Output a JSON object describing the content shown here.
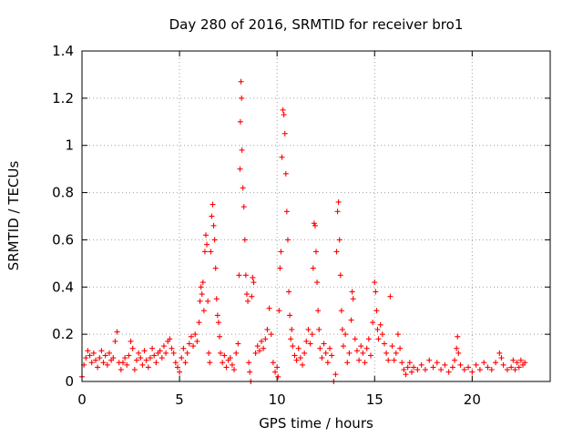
{
  "chart_data": {
    "type": "scatter",
    "title": "Day 280 of 2016, SRMTID for receiver bro1",
    "xlabel": "GPS time / hours",
    "ylabel": "SRMTID / TECUs",
    "xlim": [
      0,
      24
    ],
    "ylim": [
      0,
      1.4
    ],
    "xticks": [
      0,
      5,
      10,
      15,
      20
    ],
    "xtick_labels": [
      "0",
      "5",
      "10",
      "15",
      "20"
    ],
    "yticks": [
      0,
      0.2,
      0.4,
      0.6,
      0.8,
      1.0,
      1.2,
      1.4
    ],
    "ytick_labels": [
      "0",
      "0.2",
      "0.4",
      "0.6",
      "0.8",
      "1",
      "1.2",
      "1.4"
    ],
    "grid": true,
    "marker": "+",
    "color": "#ff0000",
    "series": [
      {
        "name": "bro1",
        "points": [
          [
            0.0,
            0.02
          ],
          [
            0.1,
            0.07
          ],
          [
            0.2,
            0.1
          ],
          [
            0.3,
            0.13
          ],
          [
            0.4,
            0.11
          ],
          [
            0.5,
            0.08
          ],
          [
            0.6,
            0.12
          ],
          [
            0.7,
            0.09
          ],
          [
            0.8,
            0.06
          ],
          [
            0.9,
            0.1
          ],
          [
            1.0,
            0.13
          ],
          [
            1.1,
            0.08
          ],
          [
            1.2,
            0.11
          ],
          [
            1.3,
            0.07
          ],
          [
            1.4,
            0.12
          ],
          [
            1.5,
            0.09
          ],
          [
            1.6,
            0.1
          ],
          [
            1.7,
            0.17
          ],
          [
            1.8,
            0.21
          ],
          [
            1.9,
            0.08
          ],
          [
            2.0,
            0.05
          ],
          [
            2.1,
            0.08
          ],
          [
            2.2,
            0.1
          ],
          [
            2.3,
            0.07
          ],
          [
            2.4,
            0.11
          ],
          [
            2.5,
            0.17
          ],
          [
            2.6,
            0.14
          ],
          [
            2.7,
            0.05
          ],
          [
            2.8,
            0.09
          ],
          [
            2.9,
            0.12
          ],
          [
            3.0,
            0.1
          ],
          [
            3.1,
            0.07
          ],
          [
            3.2,
            0.13
          ],
          [
            3.3,
            0.09
          ],
          [
            3.4,
            0.06
          ],
          [
            3.5,
            0.1
          ],
          [
            3.6,
            0.14
          ],
          [
            3.7,
            0.11
          ],
          [
            3.8,
            0.08
          ],
          [
            3.9,
            0.12
          ],
          [
            4.0,
            0.13
          ],
          [
            4.1,
            0.1
          ],
          [
            4.2,
            0.15
          ],
          [
            4.3,
            0.12
          ],
          [
            4.4,
            0.17
          ],
          [
            4.5,
            0.18
          ],
          [
            4.6,
            0.14
          ],
          [
            4.7,
            0.12
          ],
          [
            4.8,
            0.08
          ],
          [
            4.9,
            0.06
          ],
          [
            5.0,
            0.04
          ],
          [
            5.1,
            0.1
          ],
          [
            5.2,
            0.14
          ],
          [
            5.3,
            0.08
          ],
          [
            5.4,
            0.12
          ],
          [
            5.5,
            0.16
          ],
          [
            5.6,
            0.19
          ],
          [
            5.7,
            0.15
          ],
          [
            5.8,
            0.2
          ],
          [
            5.9,
            0.17
          ],
          [
            6.0,
            0.25
          ],
          [
            6.05,
            0.34
          ],
          [
            6.1,
            0.4
          ],
          [
            6.15,
            0.37
          ],
          [
            6.2,
            0.42
          ],
          [
            6.25,
            0.3
          ],
          [
            6.3,
            0.55
          ],
          [
            6.35,
            0.62
          ],
          [
            6.4,
            0.58
          ],
          [
            6.45,
            0.34
          ],
          [
            6.5,
            0.12
          ],
          [
            6.55,
            0.08
          ],
          [
            6.6,
            0.55
          ],
          [
            6.65,
            0.7
          ],
          [
            6.7,
            0.75
          ],
          [
            6.75,
            0.66
          ],
          [
            6.8,
            0.6
          ],
          [
            6.85,
            0.48
          ],
          [
            6.9,
            0.35
          ],
          [
            6.95,
            0.28
          ],
          [
            7.0,
            0.25
          ],
          [
            7.05,
            0.19
          ],
          [
            7.1,
            0.12
          ],
          [
            7.2,
            0.08
          ],
          [
            7.3,
            0.11
          ],
          [
            7.4,
            0.06
          ],
          [
            7.5,
            0.09
          ],
          [
            7.6,
            0.1
          ],
          [
            7.7,
            0.07
          ],
          [
            7.8,
            0.05
          ],
          [
            7.9,
            0.12
          ],
          [
            8.0,
            0.16
          ],
          [
            8.05,
            0.45
          ],
          [
            8.1,
            0.9
          ],
          [
            8.12,
            1.1
          ],
          [
            8.15,
            1.27
          ],
          [
            8.18,
            1.2
          ],
          [
            8.2,
            0.98
          ],
          [
            8.25,
            0.82
          ],
          [
            8.3,
            0.74
          ],
          [
            8.35,
            0.6
          ],
          [
            8.4,
            0.45
          ],
          [
            8.45,
            0.37
          ],
          [
            8.5,
            0.34
          ],
          [
            8.55,
            0.08
          ],
          [
            8.6,
            0.04
          ],
          [
            8.65,
            0.0
          ],
          [
            8.7,
            0.36
          ],
          [
            8.75,
            0.44
          ],
          [
            8.8,
            0.42
          ],
          [
            8.9,
            0.12
          ],
          [
            9.0,
            0.15
          ],
          [
            9.1,
            0.13
          ],
          [
            9.2,
            0.17
          ],
          [
            9.3,
            0.14
          ],
          [
            9.4,
            0.18
          ],
          [
            9.5,
            0.22
          ],
          [
            9.6,
            0.31
          ],
          [
            9.7,
            0.2
          ],
          [
            9.8,
            0.08
          ],
          [
            9.9,
            0.04
          ],
          [
            10.0,
            0.06
          ],
          [
            10.05,
            0.02
          ],
          [
            10.1,
            0.3
          ],
          [
            10.15,
            0.48
          ],
          [
            10.2,
            0.55
          ],
          [
            10.25,
            0.95
          ],
          [
            10.3,
            1.15
          ],
          [
            10.35,
            1.13
          ],
          [
            10.4,
            1.05
          ],
          [
            10.45,
            0.88
          ],
          [
            10.5,
            0.72
          ],
          [
            10.55,
            0.6
          ],
          [
            10.6,
            0.38
          ],
          [
            10.65,
            0.28
          ],
          [
            10.7,
            0.18
          ],
          [
            10.75,
            0.22
          ],
          [
            10.8,
            0.15
          ],
          [
            10.9,
            0.11
          ],
          [
            11.0,
            0.09
          ],
          [
            11.1,
            0.14
          ],
          [
            11.2,
            0.1
          ],
          [
            11.3,
            0.07
          ],
          [
            11.4,
            0.12
          ],
          [
            11.5,
            0.17
          ],
          [
            11.6,
            0.22
          ],
          [
            11.7,
            0.16
          ],
          [
            11.8,
            0.2
          ],
          [
            11.85,
            0.48
          ],
          [
            11.9,
            0.67
          ],
          [
            11.95,
            0.66
          ],
          [
            12.0,
            0.55
          ],
          [
            12.05,
            0.42
          ],
          [
            12.1,
            0.3
          ],
          [
            12.15,
            0.22
          ],
          [
            12.2,
            0.14
          ],
          [
            12.3,
            0.1
          ],
          [
            12.4,
            0.16
          ],
          [
            12.5,
            0.12
          ],
          [
            12.6,
            0.08
          ],
          [
            12.7,
            0.14
          ],
          [
            12.8,
            0.11
          ],
          [
            12.9,
            0.0
          ],
          [
            13.0,
            0.03
          ],
          [
            13.05,
            0.55
          ],
          [
            13.1,
            0.72
          ],
          [
            13.15,
            0.76
          ],
          [
            13.2,
            0.6
          ],
          [
            13.25,
            0.45
          ],
          [
            13.3,
            0.3
          ],
          [
            13.35,
            0.22
          ],
          [
            13.4,
            0.15
          ],
          [
            13.5,
            0.2
          ],
          [
            13.6,
            0.08
          ],
          [
            13.7,
            0.12
          ],
          [
            13.8,
            0.26
          ],
          [
            13.85,
            0.38
          ],
          [
            13.9,
            0.35
          ],
          [
            14.0,
            0.18
          ],
          [
            14.1,
            0.13
          ],
          [
            14.2,
            0.09
          ],
          [
            14.3,
            0.15
          ],
          [
            14.4,
            0.12
          ],
          [
            14.5,
            0.08
          ],
          [
            14.6,
            0.14
          ],
          [
            14.7,
            0.18
          ],
          [
            14.8,
            0.11
          ],
          [
            14.9,
            0.25
          ],
          [
            15.0,
            0.42
          ],
          [
            15.05,
            0.38
          ],
          [
            15.1,
            0.3
          ],
          [
            15.15,
            0.22
          ],
          [
            15.2,
            0.18
          ],
          [
            15.3,
            0.24
          ],
          [
            15.4,
            0.2
          ],
          [
            15.5,
            0.16
          ],
          [
            15.6,
            0.12
          ],
          [
            15.7,
            0.09
          ],
          [
            15.8,
            0.36
          ],
          [
            15.9,
            0.15
          ],
          [
            16.0,
            0.09
          ],
          [
            16.1,
            0.12
          ],
          [
            16.2,
            0.2
          ],
          [
            16.3,
            0.14
          ],
          [
            16.4,
            0.08
          ],
          [
            16.5,
            0.05
          ],
          [
            16.6,
            0.03
          ],
          [
            16.7,
            0.06
          ],
          [
            16.8,
            0.08
          ],
          [
            16.9,
            0.04
          ],
          [
            17.0,
            0.06
          ],
          [
            17.2,
            0.05
          ],
          [
            17.4,
            0.07
          ],
          [
            17.6,
            0.05
          ],
          [
            17.8,
            0.09
          ],
          [
            18.0,
            0.06
          ],
          [
            18.2,
            0.08
          ],
          [
            18.4,
            0.05
          ],
          [
            18.6,
            0.07
          ],
          [
            18.8,
            0.04
          ],
          [
            19.0,
            0.06
          ],
          [
            19.1,
            0.09
          ],
          [
            19.2,
            0.14
          ],
          [
            19.25,
            0.19
          ],
          [
            19.3,
            0.12
          ],
          [
            19.4,
            0.07
          ],
          [
            19.6,
            0.05
          ],
          [
            19.8,
            0.06
          ],
          [
            20.0,
            0.04
          ],
          [
            20.2,
            0.07
          ],
          [
            20.4,
            0.05
          ],
          [
            20.6,
            0.08
          ],
          [
            20.8,
            0.06
          ],
          [
            21.0,
            0.05
          ],
          [
            21.2,
            0.08
          ],
          [
            21.4,
            0.12
          ],
          [
            21.5,
            0.1
          ],
          [
            21.6,
            0.07
          ],
          [
            21.8,
            0.05
          ],
          [
            22.0,
            0.06
          ],
          [
            22.1,
            0.09
          ],
          [
            22.2,
            0.05
          ],
          [
            22.3,
            0.08
          ],
          [
            22.4,
            0.06
          ],
          [
            22.5,
            0.09
          ],
          [
            22.6,
            0.07
          ],
          [
            22.7,
            0.08
          ]
        ]
      }
    ]
  }
}
